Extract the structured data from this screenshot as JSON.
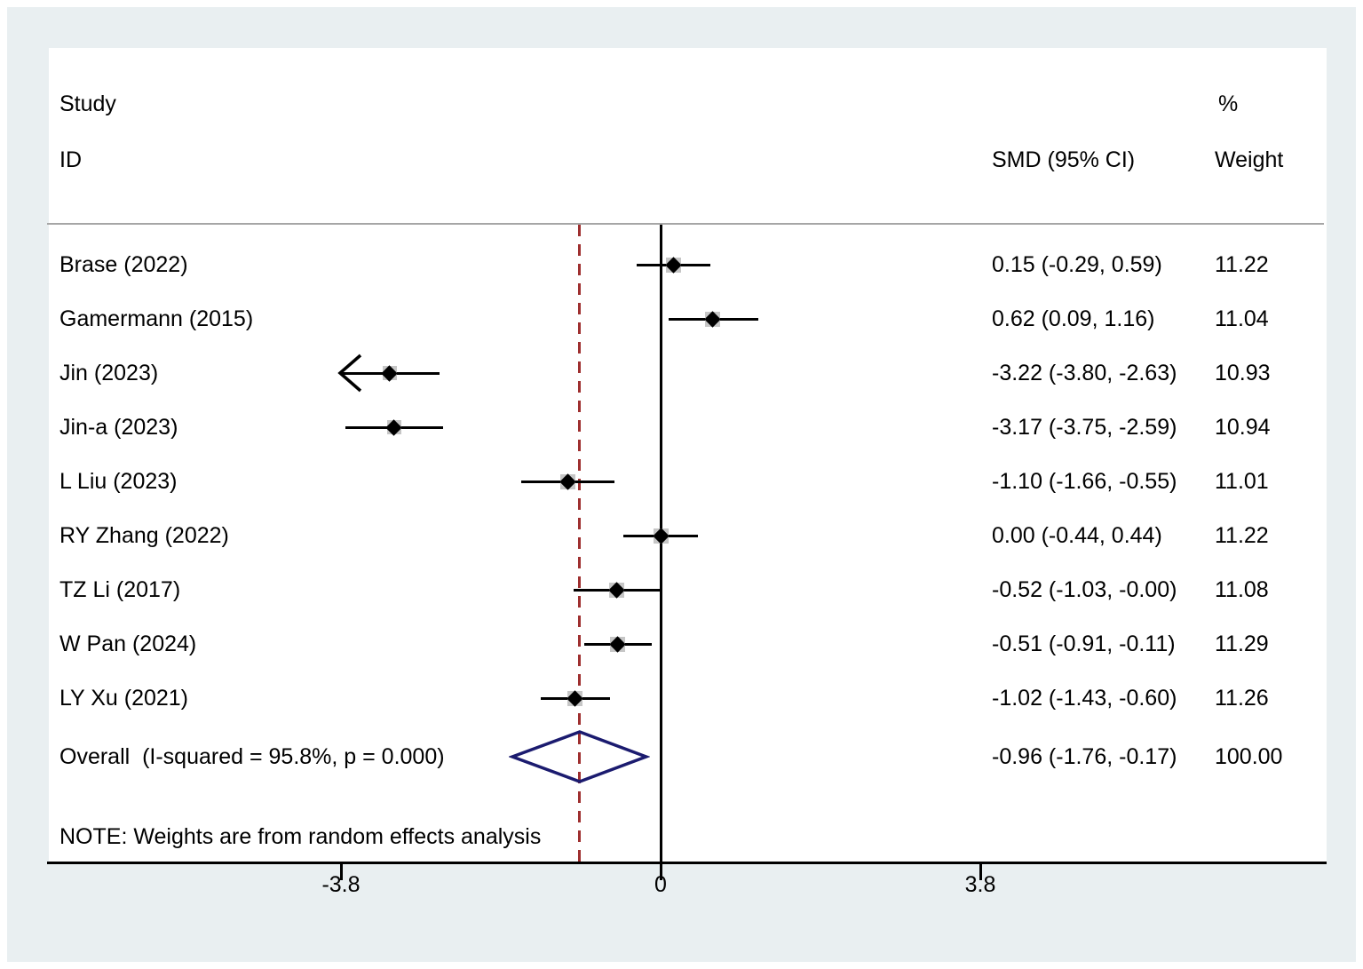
{
  "header": {
    "study_line1": "Study",
    "study_line2": "ID",
    "smd_col": "SMD (95% CI)",
    "weight_line1": "%",
    "weight_line2": "Weight"
  },
  "note": "NOTE: Weights are from random effects analysis",
  "chart_data": {
    "type": "scatter",
    "variant": "forest-plot-meta-analysis",
    "effect_measure": "SMD",
    "studies": [
      {
        "label": "Brase (2022)",
        "est": 0.15,
        "lo": -0.29,
        "hi": 0.59,
        "smd_text": "0.15 (-0.29, 0.59)",
        "weight": 11.22,
        "weight_text": "11.22",
        "arrow_lo": false
      },
      {
        "label": "Gamermann (2015)",
        "est": 0.62,
        "lo": 0.09,
        "hi": 1.16,
        "smd_text": "0.62 (0.09, 1.16)",
        "weight": 11.04,
        "weight_text": "11.04",
        "arrow_lo": false
      },
      {
        "label": "Jin (2023)",
        "est": -3.22,
        "lo": -3.8,
        "hi": -2.63,
        "smd_text": "-3.22 (-3.80, -2.63)",
        "weight": 10.93,
        "weight_text": "10.93",
        "arrow_lo": true
      },
      {
        "label": "Jin-a (2023)",
        "est": -3.17,
        "lo": -3.75,
        "hi": -2.59,
        "smd_text": "-3.17 (-3.75, -2.59)",
        "weight": 10.94,
        "weight_text": "10.94",
        "arrow_lo": false
      },
      {
        "label": "L Liu (2023)",
        "est": -1.1,
        "lo": -1.66,
        "hi": -0.55,
        "smd_text": "-1.10 (-1.66, -0.55)",
        "weight": 11.01,
        "weight_text": "11.01",
        "arrow_lo": false
      },
      {
        "label": "RY Zhang (2022)",
        "est": 0.0,
        "lo": -0.44,
        "hi": 0.44,
        "smd_text": "0.00 (-0.44, 0.44)",
        "weight": 11.22,
        "weight_text": "11.22",
        "arrow_lo": false
      },
      {
        "label": "TZ Li (2017)",
        "est": -0.52,
        "lo": -1.03,
        "hi": 0.0,
        "smd_text": "-0.52 (-1.03, -0.00)",
        "weight": 11.08,
        "weight_text": "11.08",
        "arrow_lo": false
      },
      {
        "label": "W Pan (2024)",
        "est": -0.51,
        "lo": -0.91,
        "hi": -0.11,
        "smd_text": "-0.51 (-0.91, -0.11)",
        "weight": 11.29,
        "weight_text": "11.29",
        "arrow_lo": false
      },
      {
        "label": "LY Xu (2021)",
        "est": -1.02,
        "lo": -1.43,
        "hi": -0.6,
        "smd_text": "-1.02 (-1.43, -0.60)",
        "weight": 11.26,
        "weight_text": "11.26",
        "arrow_lo": false
      }
    ],
    "overall": {
      "label": "Overall  (I-squared = 95.8%, p = 0.000)",
      "est": -0.96,
      "lo": -1.76,
      "hi": -0.17,
      "smd_text": "-0.96 (-1.76, -0.17)",
      "weight": 100.0,
      "weight_text": "100.00"
    },
    "x_ticks": [
      -3.8,
      0,
      3.8
    ],
    "x_tick_labels": [
      "-3.8",
      "0",
      "3.8"
    ],
    "zero_line_at": 0,
    "overall_dashed_line_at": -0.96,
    "clip_min": -3.8,
    "legend_position": "none",
    "grid": false,
    "colors": {
      "background_margin": "#e9eff1",
      "plot_background": "#ffffff",
      "overall_diamond": "#1b1b6f",
      "overall_dashed_line": "#9e2f2f",
      "point_marker": "#000000",
      "weight_box": "#c6c6c6",
      "separator": "#a6a6a6"
    }
  }
}
